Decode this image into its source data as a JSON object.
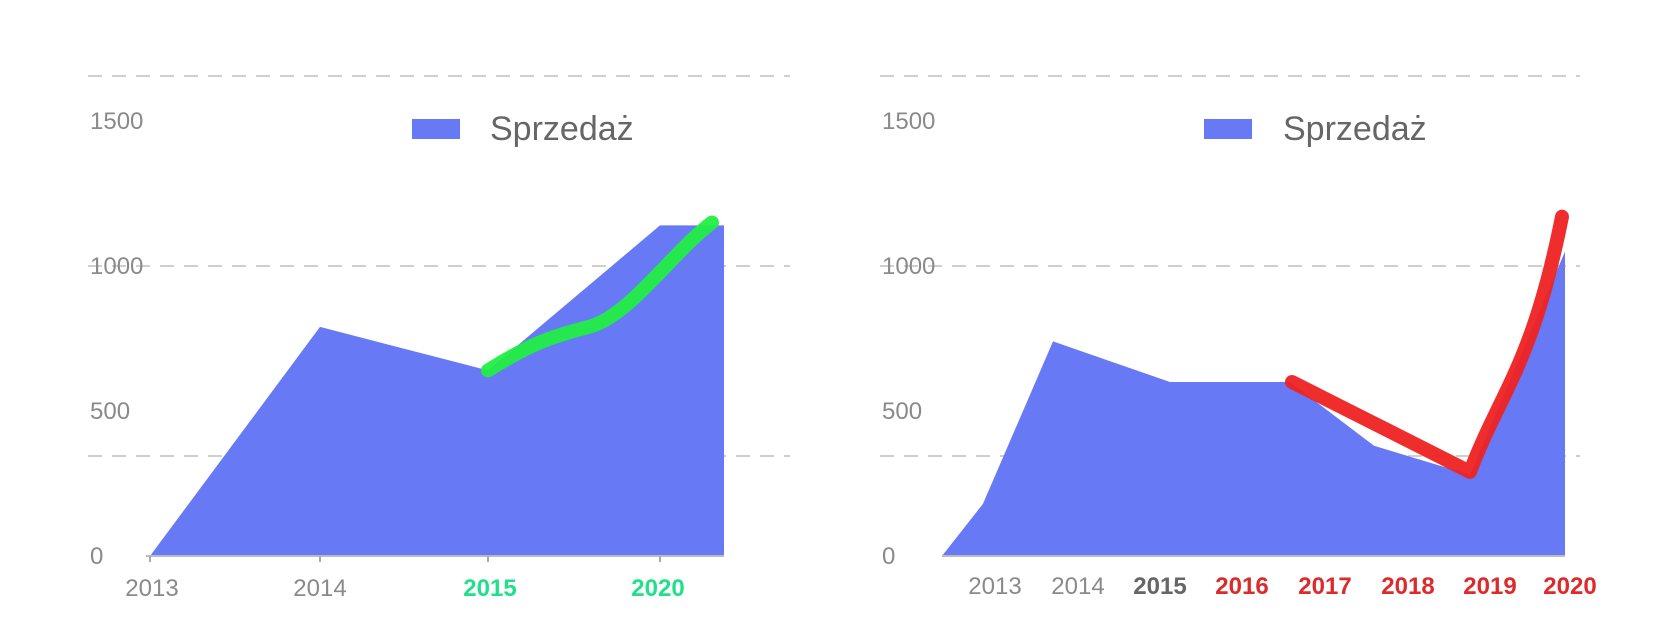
{
  "chart_data": [
    {
      "type": "area",
      "legend": {
        "label": "Sprzedaż",
        "color": "#6779f5",
        "placement": "top-center"
      },
      "x": [
        "2013",
        "2014",
        "2015",
        "2020"
      ],
      "x_label_colors": [
        "#8a8a8a",
        "#8a8a8a",
        "#22e08a",
        "#22e08a"
      ],
      "x_label_bold": [
        false,
        false,
        true,
        true
      ],
      "series": [
        {
          "name": "Sprzedaż",
          "values": [
            0,
            790,
            640,
            1140
          ]
        }
      ],
      "y_ticks": [
        "0",
        "500",
        "1000",
        "1500"
      ],
      "ylim": [
        0,
        1500
      ],
      "grid": "dashed",
      "highlight": {
        "color": "#22ee44",
        "from": "2015",
        "values": [
          640,
          1150
        ],
        "points": [
          [
            0,
            640
          ],
          [
            0.6,
            790
          ],
          [
            1,
            1150
          ]
        ]
      }
    },
    {
      "type": "area",
      "legend": {
        "label": "Sprzedaż",
        "color": "#6779f5",
        "placement": "top-center"
      },
      "x": [
        "2013",
        "2014",
        "2015",
        "2016",
        "2017",
        "2018",
        "2019",
        "2020"
      ],
      "x_label_colors": [
        "#8a8a8a",
        "#8a8a8a",
        "#666666",
        "#dd2a2a",
        "#dd2a2a",
        "#dd2a2a",
        "#dd2a2a",
        "#dd2a2a"
      ],
      "x_label_bold": [
        false,
        false,
        true,
        true,
        true,
        true,
        true,
        true
      ],
      "series": [
        {
          "name": "Sprzedaż",
          "values": [
            180,
            740,
            600,
            600,
            490,
            380,
            280,
            1050
          ]
        }
      ],
      "y_ticks": [
        "0",
        "500",
        "1000",
        "1500"
      ],
      "ylim": [
        0,
        1500
      ],
      "grid": "dashed",
      "highlight": {
        "color": "#ee2222",
        "from": "2016",
        "values": [
          600,
          290,
          1170
        ]
      }
    }
  ]
}
